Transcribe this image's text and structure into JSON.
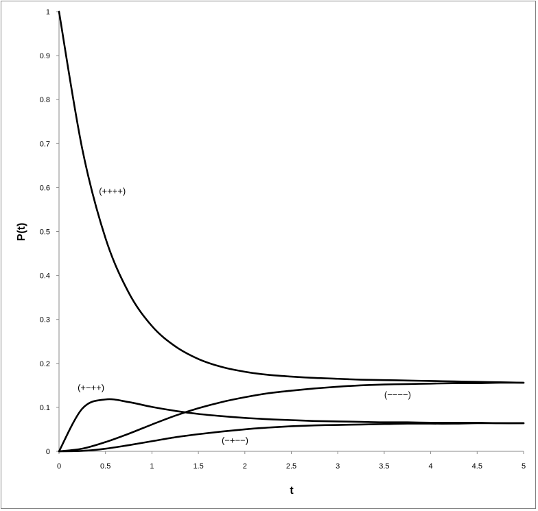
{
  "chart_data": {
    "type": "line",
    "xlabel": "t",
    "ylabel": "P(t)",
    "xlim": [
      0,
      5
    ],
    "ylim": [
      0,
      1
    ],
    "x_ticks": [
      "0",
      "0.5",
      "1",
      "1.5",
      "2",
      "2.5",
      "3",
      "3.5",
      "4",
      "4.5",
      "5"
    ],
    "y_ticks": [
      "0",
      "0.1",
      "0.2",
      "0.3",
      "0.4",
      "0.5",
      "0.6",
      "0.7",
      "0.8",
      "0.9",
      "1"
    ],
    "grid": false,
    "legend": "none",
    "line_color": "#000000",
    "x": [
      0,
      0.25,
      0.5,
      0.75,
      1,
      1.25,
      1.5,
      1.75,
      2,
      2.25,
      2.5,
      2.75,
      3,
      3.25,
      3.5,
      3.75,
      4,
      4.25,
      4.5,
      4.75,
      5
    ],
    "series": [
      {
        "values": [
          1.0,
          0.688,
          0.485,
          0.361,
          0.285,
          0.239,
          0.21,
          0.192,
          0.181,
          0.174,
          0.17,
          0.167,
          0.165,
          0.163,
          0.162,
          0.161,
          0.16,
          0.159,
          0.158,
          0.157,
          0.156
        ]
      },
      {
        "values": [
          0.0,
          0.097,
          0.118,
          0.112,
          0.101,
          0.092,
          0.085,
          0.08,
          0.076,
          0.073,
          0.071,
          0.069,
          0.068,
          0.067,
          0.066,
          0.066,
          0.065,
          0.065,
          0.065,
          0.064,
          0.064
        ]
      },
      {
        "values": [
          0.0,
          0.006,
          0.021,
          0.04,
          0.061,
          0.081,
          0.098,
          0.112,
          0.123,
          0.132,
          0.138,
          0.143,
          0.147,
          0.15,
          0.152,
          0.153,
          0.154,
          0.155,
          0.155,
          0.156,
          0.156
        ]
      },
      {
        "values": [
          0.0,
          0.001,
          0.006,
          0.014,
          0.023,
          0.032,
          0.039,
          0.045,
          0.05,
          0.054,
          0.057,
          0.059,
          0.06,
          0.061,
          0.062,
          0.063,
          0.063,
          0.063,
          0.064,
          0.064,
          0.064
        ]
      }
    ],
    "annotations": [
      {
        "text": "(++++)",
        "x": 0.43,
        "y": 0.585
      },
      {
        "text": "(+−++)",
        "x": 0.2,
        "y": 0.138
      },
      {
        "text": "(−−−−)",
        "x": 3.5,
        "y": 0.122
      },
      {
        "text": "(−+−−)",
        "x": 1.75,
        "y": 0.018
      }
    ]
  }
}
